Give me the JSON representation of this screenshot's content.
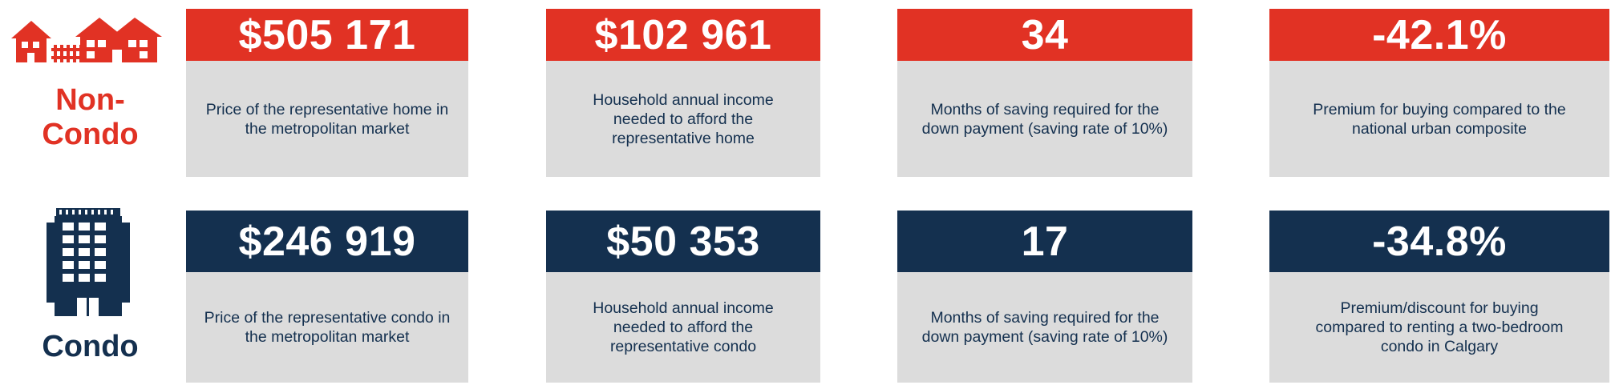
{
  "colors": {
    "accent_red": "#e13224",
    "accent_navy": "#14304f",
    "card_bg": "#dcdcdc"
  },
  "rows": [
    {
      "category_label": "Non-\nCondo",
      "category_icon": "houses-icon",
      "cards": [
        {
          "value": "$505 171",
          "description": "Price of the representative home in the metropolitan market"
        },
        {
          "value": "$102 961",
          "description": "Household annual income needed to afford the representative home"
        },
        {
          "value": "34",
          "description": "Months of saving required for the down payment (saving rate of 10%)"
        },
        {
          "value": "-42.1%",
          "description": "Premium for buying compared to the national urban composite"
        }
      ]
    },
    {
      "category_label": "Condo",
      "category_icon": "condo-building-icon",
      "cards": [
        {
          "value": "$246 919",
          "description": "Price of the representative condo in the metropolitan market"
        },
        {
          "value": "$50 353",
          "description": "Household annual income needed to afford the representative condo"
        },
        {
          "value": "17",
          "description": "Months of saving required for the down payment (saving rate of 10%)"
        },
        {
          "value": "-34.8%",
          "description": "Premium/discount for buying compared to renting a two-bedroom condo in Calgary"
        }
      ]
    }
  ]
}
